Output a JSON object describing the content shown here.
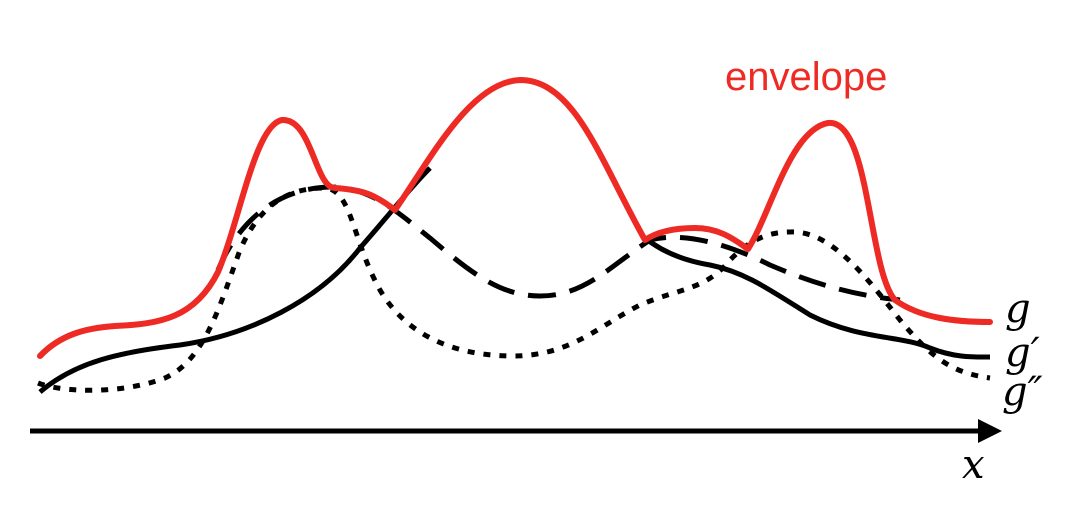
{
  "diagram": {
    "envelope_label": "envelope",
    "axis_label": "x",
    "curves": [
      {
        "name": "g",
        "label": "g",
        "style": "solid"
      },
      {
        "name": "g'",
        "label": "g′",
        "style": "dashed"
      },
      {
        "name": "g''",
        "label": "g″",
        "style": "dotted"
      }
    ],
    "colors": {
      "envelope": "#ee2a24",
      "ink": "#000000",
      "background": "#ffffff"
    }
  }
}
